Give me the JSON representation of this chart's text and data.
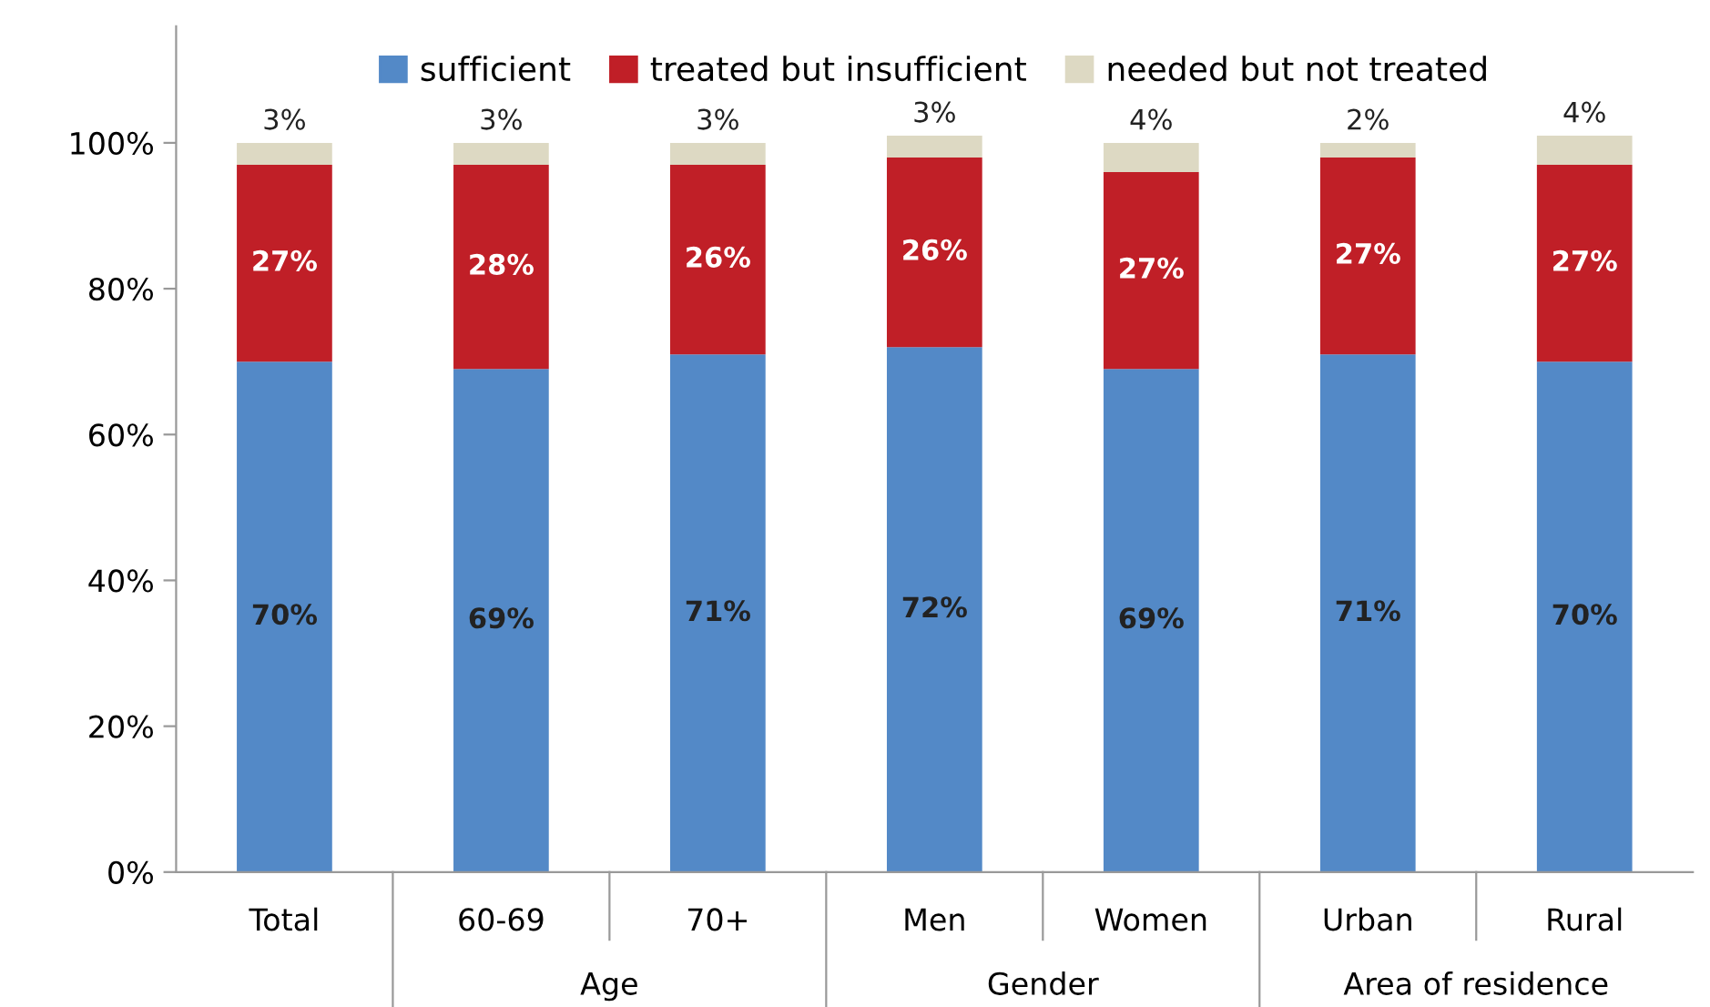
{
  "chart_data": {
    "type": "bar",
    "stacked": true,
    "categories": [
      "Total",
      "60-69",
      "70+",
      "Men",
      "Women",
      "Urban",
      "Rural"
    ],
    "series": [
      {
        "name": "sufficient",
        "color": "#5389c7",
        "values": [
          70,
          69,
          71,
          72,
          69,
          71,
          70
        ],
        "value_labels": [
          "70%",
          "69%",
          "71%",
          "72%",
          "69%",
          "71%",
          "70%"
        ]
      },
      {
        "name": "treated but insufficient",
        "color": "#c01f27",
        "values": [
          27,
          28,
          26,
          26,
          27,
          27,
          27
        ],
        "value_labels": [
          "27%",
          "28%",
          "26%",
          "26%",
          "27%",
          "27%",
          "27%"
        ]
      },
      {
        "name": "needed but not treated",
        "color": "#ddd9c3",
        "values": [
          3,
          3,
          3,
          3,
          4,
          2,
          4
        ],
        "value_labels": [
          "3%",
          "3%",
          "3%",
          "3%",
          "4%",
          "2%",
          "4%"
        ]
      }
    ],
    "ylim": [
      0,
      116
    ],
    "yticks": [
      {
        "value": 0,
        "label": "0%"
      },
      {
        "value": 20,
        "label": "20%"
      },
      {
        "value": 40,
        "label": "40%"
      },
      {
        "value": 60,
        "label": "60%"
      },
      {
        "value": 80,
        "label": "80%"
      },
      {
        "value": 100,
        "label": "100%"
      }
    ],
    "annotations": [
      "Age",
      "Gender",
      "Area of residence"
    ],
    "legend": "top",
    "grid": false
  }
}
